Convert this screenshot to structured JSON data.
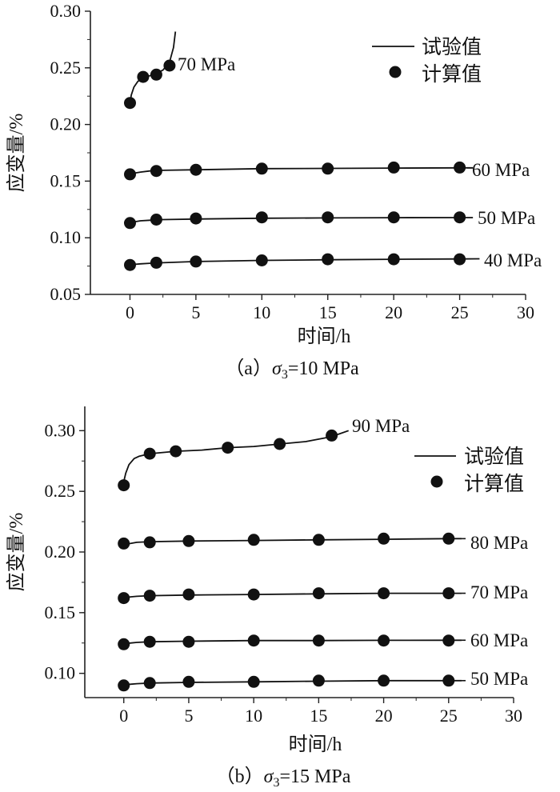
{
  "chart_data": [
    {
      "type": "line",
      "caption_prefix": "（a）",
      "caption_sigma": "σ",
      "caption_sub": "3",
      "caption_value": "=10 MPa",
      "xlabel": "时间/h",
      "ylabel": "应变量/%",
      "xlim": [
        -3,
        30
      ],
      "ylim": [
        0.05,
        0.3
      ],
      "xticks": [
        "0",
        "5",
        "10",
        "15",
        "20",
        "25",
        "30"
      ],
      "yticks": [
        "0.05",
        "0.10",
        "0.15",
        "0.20",
        "0.25",
        "0.30"
      ],
      "legend": {
        "line_label": "试验值",
        "marker_label": "计算值",
        "position": "top-right"
      },
      "series": [
        {
          "name": "70 MPa",
          "curve_x": [
            0,
            0.1,
            0.3,
            0.6,
            1.0,
            1.5,
            2.0,
            2.5,
            3.0,
            3.3,
            3.45
          ],
          "curve_y": [
            0.218,
            0.226,
            0.233,
            0.238,
            0.241,
            0.243,
            0.245,
            0.248,
            0.255,
            0.268,
            0.282
          ],
          "points_x": [
            0,
            1,
            2,
            3
          ],
          "points_y": [
            0.219,
            0.242,
            0.244,
            0.252
          ]
        },
        {
          "name": "60 MPa",
          "curve_x": [
            0,
            0.3,
            0.8,
            1.5,
            2.5,
            5,
            10,
            15,
            20,
            25,
            26
          ],
          "curve_y": [
            0.156,
            0.157,
            0.158,
            0.159,
            0.1595,
            0.16,
            0.161,
            0.1612,
            0.1615,
            0.1617,
            0.1617
          ],
          "points_x": [
            0,
            2,
            5,
            10,
            15,
            20,
            25
          ],
          "points_y": [
            0.156,
            0.159,
            0.16,
            0.161,
            0.161,
            0.162,
            0.162
          ]
        },
        {
          "name": "50 MPa",
          "curve_x": [
            0,
            0.3,
            0.8,
            1.5,
            2.5,
            5,
            10,
            15,
            20,
            25,
            26
          ],
          "curve_y": [
            0.113,
            0.114,
            0.115,
            0.1155,
            0.116,
            0.1165,
            0.1172,
            0.1175,
            0.1177,
            0.1178,
            0.1178
          ],
          "points_x": [
            0,
            2,
            5,
            10,
            15,
            20,
            25
          ],
          "points_y": [
            0.113,
            0.116,
            0.117,
            0.118,
            0.118,
            0.118,
            0.118
          ]
        },
        {
          "name": "40 MPa",
          "curve_x": [
            0,
            0.3,
            0.8,
            1.5,
            2.5,
            5,
            10,
            15,
            20,
            25,
            26.5
          ],
          "curve_y": [
            0.076,
            0.0765,
            0.077,
            0.0775,
            0.078,
            0.079,
            0.08,
            0.0806,
            0.081,
            0.0813,
            0.0814
          ],
          "points_x": [
            0,
            2,
            5,
            10,
            15,
            20,
            25
          ],
          "points_y": [
            0.076,
            0.078,
            0.079,
            0.08,
            0.081,
            0.081,
            0.081
          ]
        }
      ]
    },
    {
      "type": "line",
      "caption_prefix": "（b）",
      "caption_sigma": "σ",
      "caption_sub": "3",
      "caption_value": "=15 MPa",
      "xlabel": "时间/h",
      "ylabel": "应变量/%",
      "xlim": [
        -3,
        30
      ],
      "ylim": [
        0.08,
        0.32
      ],
      "xticks": [
        "0",
        "5",
        "10",
        "15",
        "20",
        "25",
        "30"
      ],
      "yticks": [
        "0.10",
        "0.15",
        "0.20",
        "0.25",
        "0.30"
      ],
      "legend": {
        "line_label": "试验值",
        "marker_label": "计算值",
        "position": "top-right"
      },
      "series": [
        {
          "name": "90 MPa",
          "curve_x": [
            0,
            0.15,
            0.4,
            0.8,
            1.2,
            2,
            4,
            6,
            8,
            10,
            12,
            14,
            15.5,
            16.5,
            17.3
          ],
          "curve_y": [
            0.258,
            0.265,
            0.272,
            0.277,
            0.279,
            0.281,
            0.283,
            0.284,
            0.286,
            0.287,
            0.289,
            0.291,
            0.294,
            0.297,
            0.3
          ],
          "points_x": [
            0,
            2,
            4,
            8,
            12,
            16
          ],
          "points_y": [
            0.255,
            0.281,
            0.283,
            0.286,
            0.289,
            0.296
          ]
        },
        {
          "name": "80 MPa",
          "curve_x": [
            0,
            0.5,
            1,
            2,
            5,
            10,
            15,
            20,
            25,
            26
          ],
          "curve_y": [
            0.206,
            0.207,
            0.208,
            0.2085,
            0.209,
            0.2095,
            0.21,
            0.2105,
            0.211,
            0.211
          ],
          "points_x": [
            0,
            2,
            5,
            10,
            15,
            20,
            25
          ],
          "points_y": [
            0.207,
            0.208,
            0.209,
            0.21,
            0.21,
            0.211,
            0.211
          ]
        },
        {
          "name": "70 MPa",
          "curve_x": [
            0,
            0.5,
            1,
            2,
            5,
            10,
            15,
            20,
            25,
            26
          ],
          "curve_y": [
            0.162,
            0.163,
            0.1635,
            0.164,
            0.1645,
            0.165,
            0.1655,
            0.166,
            0.166,
            0.166
          ],
          "points_x": [
            0,
            2,
            5,
            10,
            15,
            20,
            25
          ],
          "points_y": [
            0.162,
            0.164,
            0.165,
            0.165,
            0.166,
            0.166,
            0.166
          ]
        },
        {
          "name": "60 MPa",
          "curve_x": [
            0,
            0.5,
            1,
            2,
            5,
            10,
            15,
            20,
            25,
            26
          ],
          "curve_y": [
            0.124,
            0.125,
            0.1255,
            0.126,
            0.1265,
            0.127,
            0.127,
            0.1272,
            0.1273,
            0.1273
          ],
          "points_x": [
            0,
            2,
            5,
            10,
            15,
            20,
            25
          ],
          "points_y": [
            0.124,
            0.126,
            0.126,
            0.127,
            0.127,
            0.127,
            0.127
          ]
        },
        {
          "name": "50 MPa",
          "curve_x": [
            0,
            0.5,
            1,
            2,
            5,
            10,
            15,
            20,
            25,
            26
          ],
          "curve_y": [
            0.09,
            0.091,
            0.0915,
            0.092,
            0.0925,
            0.093,
            0.0935,
            0.094,
            0.094,
            0.094
          ],
          "points_x": [
            0,
            2,
            5,
            10,
            15,
            20,
            25
          ],
          "points_y": [
            0.09,
            0.092,
            0.093,
            0.093,
            0.094,
            0.094,
            0.094
          ]
        }
      ]
    }
  ]
}
